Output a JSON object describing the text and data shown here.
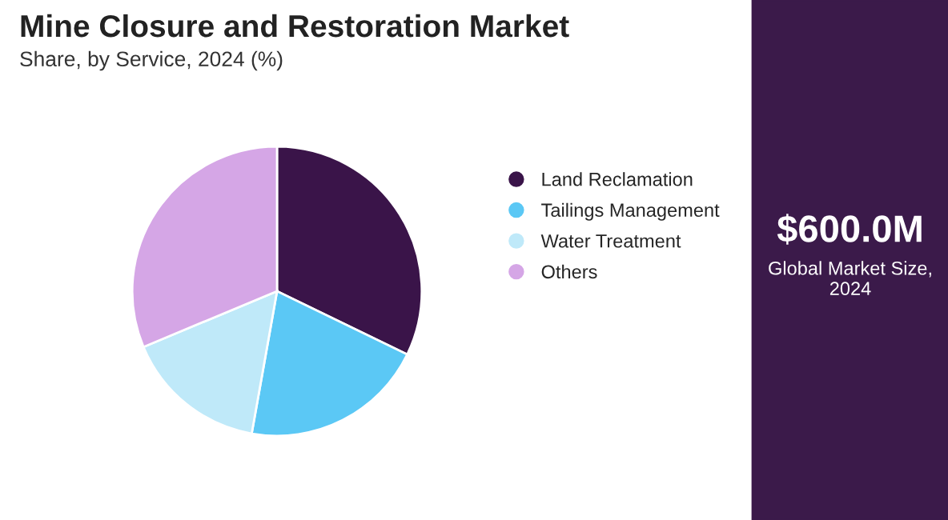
{
  "chart_data": {
    "type": "pie",
    "title": "Mine Closure and Restoration Market",
    "subtitle": "Share, by Service, 2024 (%)",
    "categories": [
      "Land Reclamation",
      "Tailings Management",
      "Water Treatment",
      "Others"
    ],
    "values": [
      32.2,
      20.6,
      15.9,
      31.3
    ],
    "colors": [
      "#3a1449",
      "#5bc8f5",
      "#bfe9f9",
      "#d5a6e6"
    ],
    "legend": "right",
    "annotations": [
      "$600.0M",
      "Global Market Size,\n2024"
    ]
  }
}
